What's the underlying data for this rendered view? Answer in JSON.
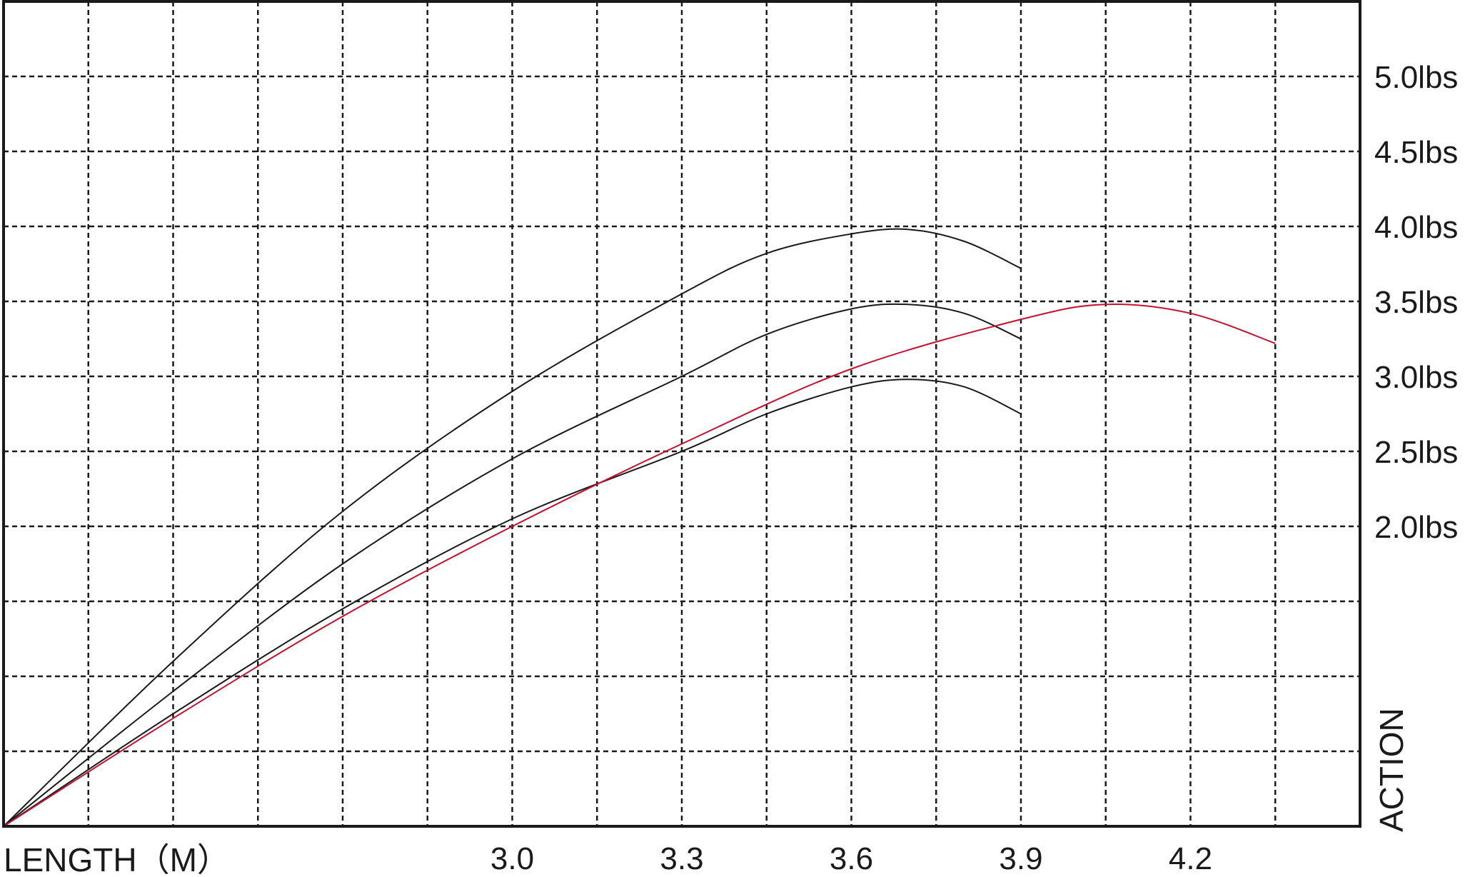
{
  "chart_data": {
    "type": "line",
    "title": "",
    "xlabel": "LENGTH（M）",
    "ylabel": "ACTION",
    "x_ticks": [
      {
        "value": 3.0,
        "label": "3.0"
      },
      {
        "value": 3.3,
        "label": "3.3"
      },
      {
        "value": 3.6,
        "label": "3.6"
      },
      {
        "value": 3.9,
        "label": "3.9"
      },
      {
        "value": 4.2,
        "label": "4.2"
      }
    ],
    "y_ticks": [
      {
        "value": 2.0,
        "label": "2.0lbs"
      },
      {
        "value": 2.5,
        "label": "2.5lbs"
      },
      {
        "value": 3.0,
        "label": "3.0lbs"
      },
      {
        "value": 3.5,
        "label": "3.5lbs"
      },
      {
        "value": 4.0,
        "label": "4.0lbs"
      },
      {
        "value": 4.5,
        "label": "4.5lbs"
      },
      {
        "value": 5.0,
        "label": "5.0lbs"
      }
    ],
    "xlim": [
      2.1,
      4.5
    ],
    "ylim": [
      0.0,
      5.5
    ],
    "grid": true,
    "grid_step_x": 0.15,
    "grid_step_y": 0.5,
    "series": [
      {
        "color": "#1a1a1a",
        "points": [
          [
            2.1,
            0.0
          ],
          [
            2.4,
            1.1
          ],
          [
            2.7,
            2.1
          ],
          [
            3.0,
            2.9
          ],
          [
            3.3,
            3.55
          ],
          [
            3.45,
            3.82
          ],
          [
            3.6,
            3.95
          ],
          [
            3.7,
            3.98
          ],
          [
            3.8,
            3.9
          ],
          [
            3.9,
            3.72
          ]
        ]
      },
      {
        "color": "#1a1a1a",
        "points": [
          [
            2.1,
            0.0
          ],
          [
            2.4,
            0.9
          ],
          [
            2.7,
            1.75
          ],
          [
            3.0,
            2.45
          ],
          [
            3.3,
            3.0
          ],
          [
            3.45,
            3.28
          ],
          [
            3.6,
            3.45
          ],
          [
            3.7,
            3.48
          ],
          [
            3.8,
            3.42
          ],
          [
            3.9,
            3.25
          ]
        ]
      },
      {
        "color": "#1a1a1a",
        "points": [
          [
            2.1,
            0.0
          ],
          [
            2.4,
            0.75
          ],
          [
            2.7,
            1.45
          ],
          [
            3.0,
            2.05
          ],
          [
            3.3,
            2.5
          ],
          [
            3.45,
            2.75
          ],
          [
            3.6,
            2.93
          ],
          [
            3.7,
            2.98
          ],
          [
            3.8,
            2.93
          ],
          [
            3.9,
            2.75
          ]
        ]
      },
      {
        "color": "#c8102e",
        "points": [
          [
            2.1,
            0.0
          ],
          [
            2.4,
            0.72
          ],
          [
            2.7,
            1.4
          ],
          [
            3.0,
            2.0
          ],
          [
            3.3,
            2.55
          ],
          [
            3.6,
            3.05
          ],
          [
            3.9,
            3.38
          ],
          [
            4.05,
            3.48
          ],
          [
            4.2,
            3.42
          ],
          [
            4.35,
            3.22
          ]
        ]
      }
    ]
  }
}
